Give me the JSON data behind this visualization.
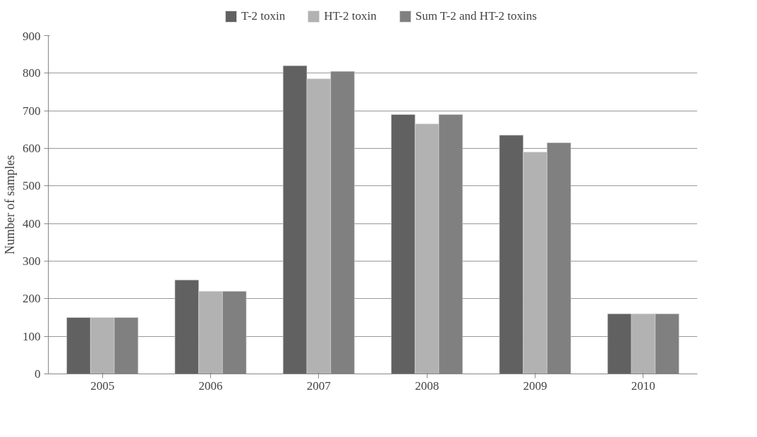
{
  "chart_data": {
    "type": "bar",
    "ylabel": "Number of samples",
    "categories": [
      "2005",
      "2006",
      "2007",
      "2008",
      "2009",
      "2010"
    ],
    "series": [
      {
        "name": "T-2 toxin",
        "color": "#616161",
        "values": [
          150,
          250,
          820,
          690,
          635,
          160
        ]
      },
      {
        "name": "HT-2 toxin",
        "color": "#b2b2b2",
        "values": [
          150,
          220,
          785,
          665,
          590,
          160
        ]
      },
      {
        "name": "Sum T-2 and HT-2 toxins",
        "color": "#808080",
        "values": [
          150,
          220,
          805,
          690,
          615,
          160
        ]
      }
    ],
    "ylim": [
      0,
      900
    ],
    "yticks": [
      0,
      100,
      200,
      300,
      400,
      500,
      600,
      700,
      800,
      900
    ],
    "grid": "y",
    "legend": "top"
  }
}
